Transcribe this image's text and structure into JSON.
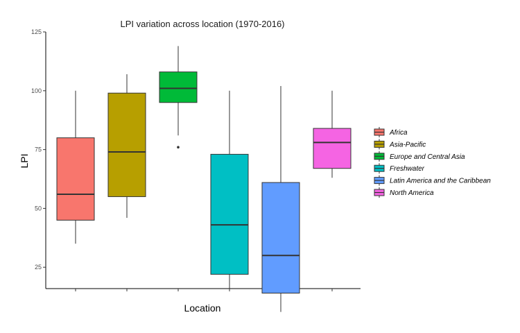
{
  "chart_data": {
    "type": "boxplot",
    "title": "LPI variation across location (1970-2016)",
    "xlabel": "Location",
    "ylabel": "LPI",
    "ylim": [
      0,
      125
    ],
    "yticks": [
      25,
      50,
      75,
      100,
      125
    ],
    "grid": false,
    "legend_position": "right",
    "series": [
      {
        "name": "Africa",
        "color": "#F8766D",
        "min": 35,
        "q1": 45,
        "median": 56,
        "q3": 80,
        "max": 100,
        "outliers": []
      },
      {
        "name": "Asia-Pacific",
        "color": "#B79F00",
        "min": 46,
        "q1": 55,
        "median": 74,
        "q3": 99,
        "max": 107,
        "outliers": []
      },
      {
        "name": "Europe and Central Asia",
        "color": "#00BA38",
        "min": 81,
        "q1": 95,
        "median": 101,
        "q3": 108,
        "max": 119,
        "outliers": [
          76
        ]
      },
      {
        "name": "Freshwater",
        "color": "#00BFC4",
        "min": 15,
        "q1": 22,
        "median": 43,
        "q3": 73,
        "max": 100,
        "outliers": []
      },
      {
        "name": "Latin America and the Caribbean",
        "color": "#619CFF",
        "min": 6,
        "q1": 14,
        "median": 30,
        "q3": 61,
        "max": 102,
        "outliers": []
      },
      {
        "name": "North America",
        "color": "#F564E3",
        "min": 63,
        "q1": 67,
        "median": 78,
        "q3": 84,
        "max": 100,
        "outliers": []
      }
    ]
  }
}
